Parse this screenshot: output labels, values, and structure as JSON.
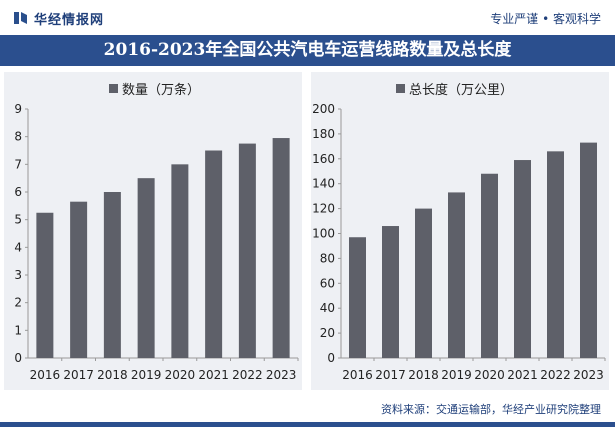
{
  "header": {
    "logo_text": "华经情报网",
    "slogan": "专业严谨 • 客观科学"
  },
  "title": "2016-2023年全国公共汽电车运营线路数量及总长度",
  "source": "资料来源：交通运输部，华经产业研究院整理",
  "colors": {
    "bar": "#5e6069",
    "title_bar": "#2b4f8e",
    "panel": "#eef0f4"
  },
  "chart_data": [
    {
      "type": "bar",
      "legend": "数量（万条）",
      "legend_position": "top-left",
      "categories": [
        "2016",
        "2017",
        "2018",
        "2019",
        "2020",
        "2021",
        "2022",
        "2023"
      ],
      "values": [
        5.25,
        5.65,
        6.0,
        6.5,
        7.0,
        7.5,
        7.75,
        7.95
      ],
      "ylim": [
        0,
        9
      ],
      "yticks": [
        0,
        1,
        2,
        3,
        4,
        5,
        6,
        7,
        8,
        9
      ],
      "grid": false
    },
    {
      "type": "bar",
      "legend": "总长度（万公里）",
      "legend_position": "top-left",
      "categories": [
        "2016",
        "2017",
        "2018",
        "2019",
        "2020",
        "2021",
        "2022",
        "2023"
      ],
      "values": [
        97,
        106,
        120,
        133,
        148,
        159,
        166,
        173
      ],
      "ylim": [
        0,
        200
      ],
      "yticks": [
        0,
        20,
        40,
        60,
        80,
        100,
        120,
        140,
        160,
        180,
        200
      ],
      "grid": false
    }
  ]
}
